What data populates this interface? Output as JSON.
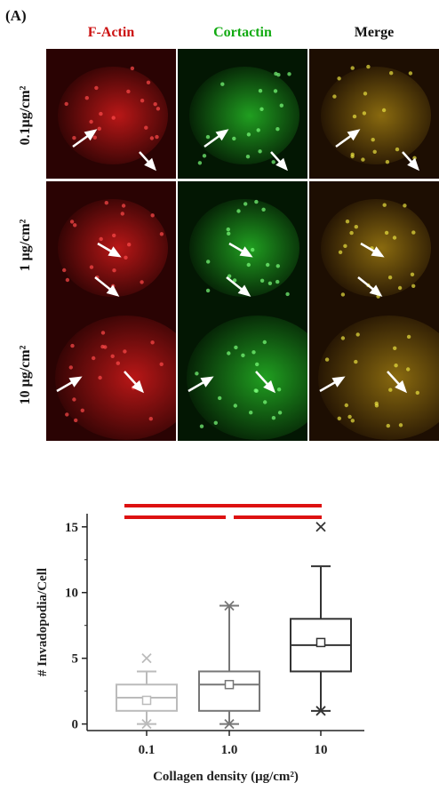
{
  "panel_label": "(A)",
  "columns": [
    {
      "label": "F-Actin",
      "color": "#cc1111"
    },
    {
      "label": "Cortactin",
      "color": "#11aa11"
    },
    {
      "label": "Merge",
      "color": "#111111"
    }
  ],
  "rows": [
    {
      "label": "0.1μg/cm²"
    },
    {
      "label": "1 μg/cm²"
    },
    {
      "label": "10 μg/cm²"
    }
  ],
  "chart_data": {
    "type": "box",
    "categories": [
      "0.1",
      "1.0",
      "10"
    ],
    "xlabel": "Collagen density (μg/cm²)",
    "ylabel": "# Invadopodia/Cell",
    "ylim": [
      -0.5,
      16
    ],
    "yticks": [
      0,
      5,
      10,
      15
    ],
    "series": [
      {
        "category": "0.1",
        "whisker_low": 0,
        "q1": 1,
        "median": 2,
        "q3": 3,
        "whisker_high": 4,
        "mean": 1.8,
        "min": 0,
        "max": 5,
        "color": "#bbbbbb"
      },
      {
        "category": "1.0",
        "whisker_low": 0,
        "q1": 1,
        "median": 3,
        "q3": 4,
        "whisker_high": 9,
        "mean": 3.0,
        "min": 0,
        "max": 9,
        "color": "#777777"
      },
      {
        "category": "10",
        "whisker_low": 1,
        "q1": 4,
        "median": 6,
        "q3": 8,
        "whisker_high": 12,
        "mean": 6.2,
        "min": 1,
        "max": 15,
        "color": "#333333"
      }
    ],
    "significance_color": "#dd1111"
  }
}
